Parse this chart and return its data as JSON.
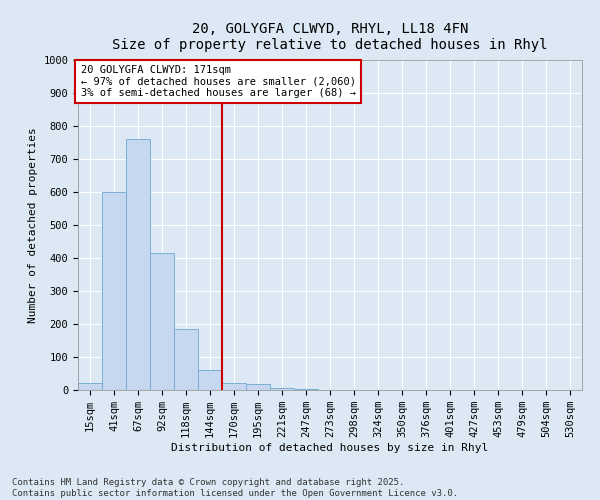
{
  "title_line1": "20, GOLYGFA CLWYD, RHYL, LL18 4FN",
  "title_line2": "Size of property relative to detached houses in Rhyl",
  "xlabel": "Distribution of detached houses by size in Rhyl",
  "ylabel": "Number of detached properties",
  "bar_color": "#c5d8f0",
  "bar_edge_color": "#7aafd4",
  "bg_color": "#dce9f5",
  "categories": [
    "15sqm",
    "41sqm",
    "67sqm",
    "92sqm",
    "118sqm",
    "144sqm",
    "170sqm",
    "195sqm",
    "221sqm",
    "247sqm",
    "273sqm",
    "298sqm",
    "324sqm",
    "350sqm",
    "376sqm",
    "401sqm",
    "427sqm",
    "453sqm",
    "479sqm",
    "504sqm",
    "530sqm"
  ],
  "values": [
    20,
    600,
    760,
    415,
    185,
    60,
    20,
    17,
    5,
    3,
    0,
    0,
    0,
    0,
    0,
    0,
    0,
    0,
    0,
    0,
    0
  ],
  "ylim": [
    0,
    1000
  ],
  "yticks": [
    0,
    100,
    200,
    300,
    400,
    500,
    600,
    700,
    800,
    900,
    1000
  ],
  "vline_index": 5.5,
  "vline_color": "#cc0000",
  "annotation_title": "20 GOLYGFA CLWYD: 171sqm",
  "annotation_line1": "← 97% of detached houses are smaller (2,060)",
  "annotation_line2": "3% of semi-detached houses are larger (68) →",
  "annotation_box_color": "#cc0000",
  "footer_line1": "Contains HM Land Registry data © Crown copyright and database right 2025.",
  "footer_line2": "Contains public sector information licensed under the Open Government Licence v3.0.",
  "grid_color": "#ffffff",
  "title_fontsize": 10,
  "axis_label_fontsize": 8,
  "tick_fontsize": 7.5,
  "annotation_fontsize": 7.5,
  "footer_fontsize": 6.5
}
